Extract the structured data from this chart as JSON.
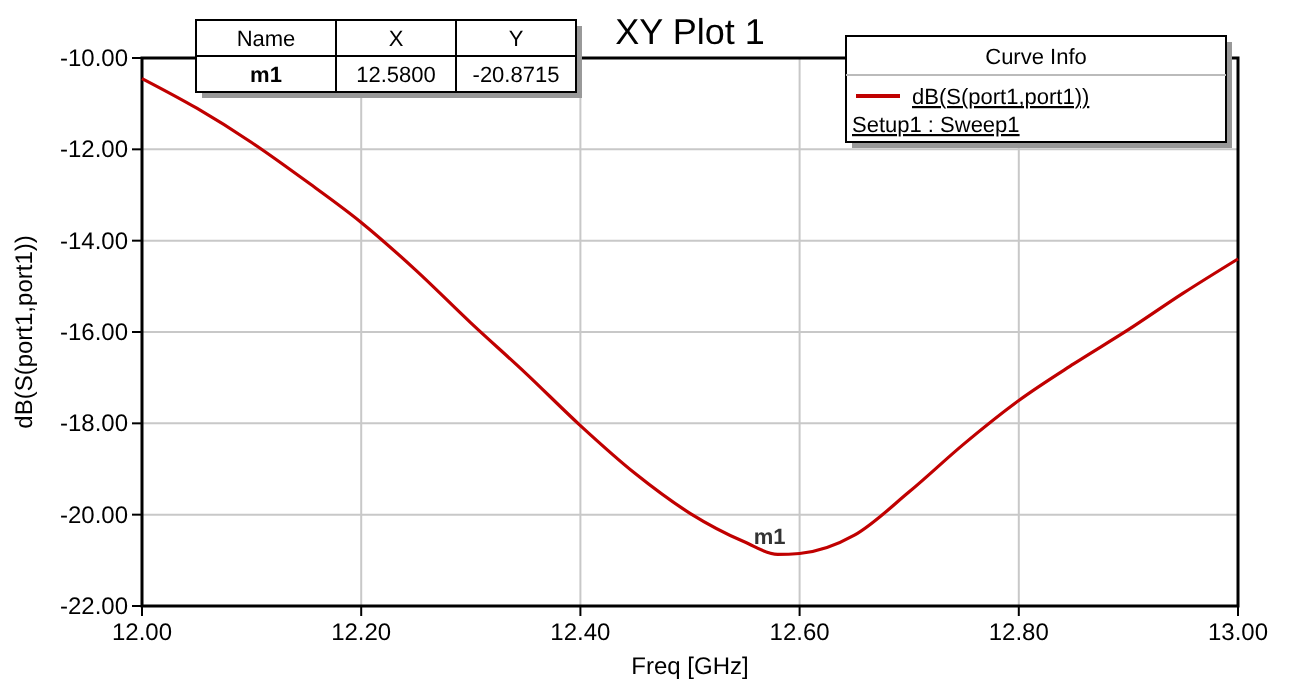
{
  "chart_data": {
    "type": "line",
    "title": "XY Plot 1",
    "xlabel": "Freq [GHz]",
    "ylabel": "dB(S(port1,port1))",
    "legend_title": "Curve Info",
    "legend": "top right",
    "grid": true,
    "line_style": "solid",
    "xlim": [
      12.0,
      13.0
    ],
    "xticks": [
      {
        "value": 12.0,
        "label": "12.00"
      },
      {
        "value": 12.2,
        "label": "12.20"
      },
      {
        "value": 12.4,
        "label": "12.40"
      },
      {
        "value": 12.6,
        "label": "12.60"
      },
      {
        "value": 12.8,
        "label": "12.80"
      },
      {
        "value": 13.0,
        "label": "13.00"
      }
    ],
    "ylim": [
      -22.0,
      -10.0
    ],
    "yticks": [
      {
        "value": -22,
        "label": "-22.00"
      },
      {
        "value": -20,
        "label": "-20.00"
      },
      {
        "value": -18,
        "label": "-18.00"
      },
      {
        "value": -16,
        "label": "-16.00"
      },
      {
        "value": -14,
        "label": "-14.00"
      },
      {
        "value": -12,
        "label": "-12.00"
      },
      {
        "value": -10,
        "label": "-10.00"
      }
    ],
    "x": [
      12.0,
      12.05,
      12.1,
      12.15,
      12.2,
      12.25,
      12.3,
      12.35,
      12.4,
      12.45,
      12.5,
      12.55,
      12.58,
      12.6,
      12.65,
      12.7,
      12.75,
      12.8,
      12.85,
      12.9,
      12.95,
      13.0
    ],
    "series": [
      {
        "name": "dB(S(port1,port1))",
        "color": "#c00000",
        "values": [
          -10.45,
          -11.1,
          -11.85,
          -12.7,
          -13.6,
          -14.65,
          -15.8,
          -16.9,
          -18.05,
          -19.1,
          -19.97,
          -20.6,
          -20.87,
          -20.85,
          -20.45,
          -19.5,
          -18.45,
          -17.5,
          -16.7,
          -15.95,
          -15.15,
          -14.4
        ]
      }
    ],
    "annotations": [
      "Name",
      "X",
      "Y",
      "m1",
      "12.5800",
      "-20.8715",
      "Setup1 : Sweep1",
      {
        "text": "m1",
        "x": 12.58,
        "y": -20.8715
      }
    ]
  }
}
